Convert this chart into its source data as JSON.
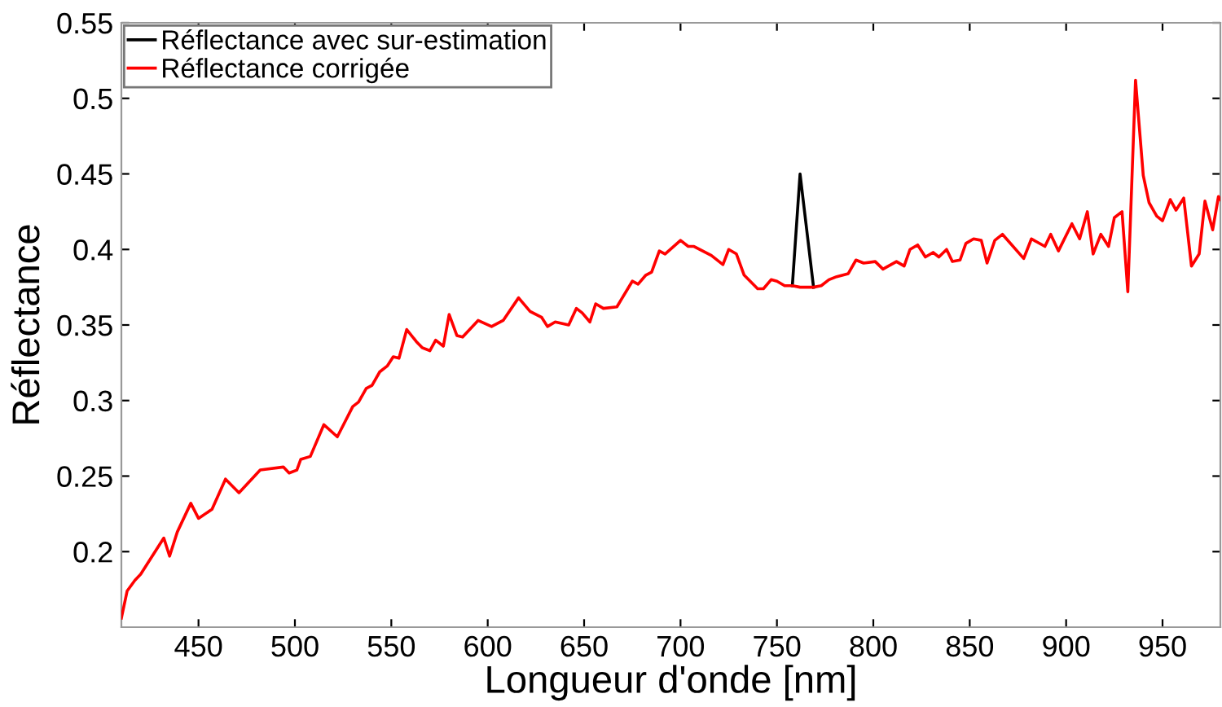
{
  "chart_data": {
    "type": "line",
    "xlabel": "Longueur d'onde [nm]",
    "ylabel": "Réflectance",
    "xlim": [
      410,
      980
    ],
    "xticks": [
      450,
      500,
      550,
      600,
      650,
      700,
      750,
      800,
      850,
      900,
      950
    ],
    "ylim": [
      0.15,
      0.55
    ],
    "yticks": [
      0.2,
      0.25,
      0.3,
      0.35,
      0.4,
      0.45,
      0.5,
      0.55
    ],
    "grid": false,
    "legend": "top left",
    "marker": "none",
    "line_style": "solid",
    "series": [
      {
        "name": "Réflectance avec sur-estimation",
        "color": "#000000",
        "x": [
          758,
          762,
          769
        ],
        "values": [
          0.376,
          0.45,
          0.375
        ]
      },
      {
        "name": "Réflectance corrigée",
        "color": "#ff0000",
        "x": [
          410,
          413,
          417,
          420,
          432,
          435,
          439,
          446,
          450,
          457,
          464,
          471,
          482,
          494,
          497,
          501,
          503,
          508,
          515,
          522,
          530,
          533,
          537,
          540,
          544,
          548,
          551,
          554,
          558,
          563,
          566,
          570,
          573,
          577,
          580,
          584,
          587,
          595,
          602,
          608,
          616,
          622,
          628,
          631,
          635,
          642,
          646,
          649,
          653,
          656,
          660,
          667,
          675,
          678,
          682,
          685,
          689,
          692,
          700,
          704,
          707,
          716,
          722,
          725,
          729,
          733,
          740,
          743,
          747,
          750,
          754,
          758,
          762,
          769,
          773,
          777,
          781,
          787,
          791,
          795,
          801,
          805,
          812,
          816,
          819,
          823,
          827,
          831,
          834,
          838,
          841,
          845,
          848,
          852,
          856,
          859,
          863,
          867,
          878,
          882,
          889,
          892,
          896,
          903,
          907,
          911,
          914,
          918,
          922,
          925,
          929,
          932,
          936,
          940,
          943,
          947,
          950,
          954,
          957,
          961,
          965,
          969,
          972,
          976,
          979,
          980
        ],
        "values": [
          0.156,
          0.174,
          0.181,
          0.185,
          0.209,
          0.197,
          0.213,
          0.232,
          0.222,
          0.228,
          0.248,
          0.239,
          0.254,
          0.256,
          0.252,
          0.254,
          0.261,
          0.263,
          0.284,
          0.276,
          0.296,
          0.299,
          0.308,
          0.31,
          0.319,
          0.323,
          0.329,
          0.328,
          0.347,
          0.339,
          0.335,
          0.333,
          0.34,
          0.336,
          0.357,
          0.343,
          0.342,
          0.353,
          0.349,
          0.353,
          0.368,
          0.359,
          0.355,
          0.349,
          0.352,
          0.35,
          0.361,
          0.358,
          0.352,
          0.364,
          0.361,
          0.362,
          0.379,
          0.377,
          0.383,
          0.385,
          0.399,
          0.397,
          0.406,
          0.402,
          0.402,
          0.396,
          0.39,
          0.4,
          0.397,
          0.383,
          0.374,
          0.374,
          0.38,
          0.379,
          0.376,
          0.376,
          0.375,
          0.375,
          0.376,
          0.38,
          0.382,
          0.384,
          0.393,
          0.391,
          0.392,
          0.387,
          0.392,
          0.389,
          0.4,
          0.403,
          0.395,
          0.398,
          0.395,
          0.4,
          0.392,
          0.393,
          0.404,
          0.407,
          0.406,
          0.391,
          0.406,
          0.41,
          0.394,
          0.407,
          0.402,
          0.41,
          0.399,
          0.417,
          0.407,
          0.425,
          0.397,
          0.41,
          0.402,
          0.421,
          0.425,
          0.372,
          0.512,
          0.449,
          0.431,
          0.422,
          0.419,
          0.433,
          0.426,
          0.434,
          0.389,
          0.397,
          0.432,
          0.413,
          0.435,
          0.433
        ]
      }
    ]
  }
}
